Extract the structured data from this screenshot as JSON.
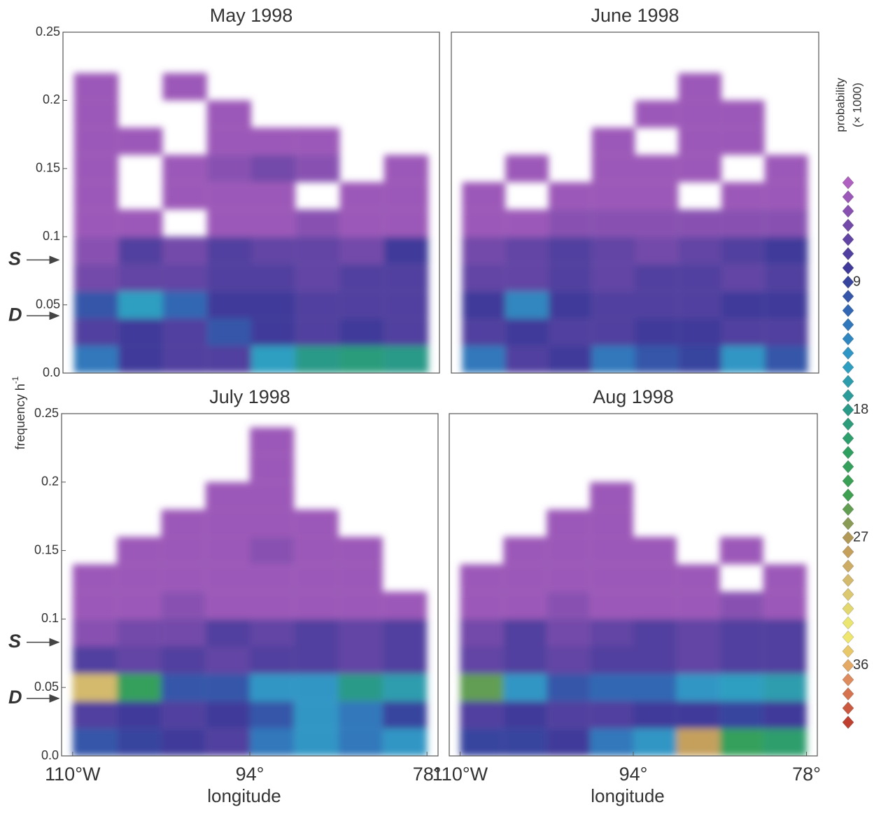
{
  "chart_data": [
    {
      "type": "heatmap",
      "title": "May 1998",
      "xlim": [
        -111,
        -77
      ],
      "ylim": [
        0,
        0.25
      ],
      "yticks": [
        {
          "value": 0,
          "label": "0.0"
        },
        0.05,
        0.1,
        0.15,
        0.2,
        0.25
      ],
      "xbins": [
        -110,
        -106,
        -102,
        -98,
        -94,
        -90,
        -86,
        -82,
        -78
      ],
      "ybins": [
        0,
        0.02,
        0.04,
        0.06,
        0.08,
        0.1,
        0.12,
        0.14,
        0.16,
        0.18,
        0.2,
        0.22,
        0.24
      ],
      "z": [
        [
          12,
          8,
          7,
          7,
          15,
          18,
          19,
          18
        ],
        [
          7,
          8,
          7,
          10,
          8,
          7,
          8,
          7
        ],
        [
          10,
          15,
          11,
          8,
          8,
          7,
          7,
          7
        ],
        [
          5,
          6,
          6,
          7,
          7,
          6,
          7,
          7
        ],
        [
          4,
          7,
          5,
          7,
          6,
          6,
          5,
          8
        ],
        [
          3,
          3,
          null,
          3,
          3,
          4,
          3,
          3
        ],
        [
          3,
          null,
          3,
          3,
          3,
          null,
          3,
          3
        ],
        [
          3,
          null,
          3,
          4,
          5,
          4,
          null,
          3
        ],
        [
          3,
          3,
          null,
          3,
          3,
          3,
          null,
          null
        ],
        [
          3,
          null,
          null,
          3,
          null,
          null,
          null,
          null
        ],
        [
          3,
          null,
          3,
          null,
          null,
          null,
          null,
          null
        ],
        [
          null,
          null,
          null,
          null,
          null,
          null,
          null,
          null
        ]
      ],
      "annotations": [
        {
          "text": "S",
          "y": 0.083
        },
        {
          "text": "D",
          "y": 0.042
        }
      ]
    },
    {
      "type": "heatmap",
      "title": "June 1998",
      "xlim": [
        -111,
        -77
      ],
      "ylim": [
        0,
        0.25
      ],
      "xbins": [
        -110,
        -106,
        -102,
        -98,
        -94,
        -90,
        -86,
        -82,
        -78
      ],
      "ybins": [
        0,
        0.02,
        0.04,
        0.06,
        0.08,
        0.1,
        0.12,
        0.14,
        0.16,
        0.18,
        0.2,
        0.22,
        0.24
      ],
      "z": [
        [
          12,
          7,
          8,
          12,
          10,
          9,
          14,
          10
        ],
        [
          7,
          8,
          7,
          7,
          8,
          8,
          7,
          7
        ],
        [
          8,
          13,
          8,
          7,
          7,
          7,
          8,
          8
        ],
        [
          6,
          6,
          7,
          6,
          7,
          7,
          6,
          7
        ],
        [
          5,
          6,
          7,
          6,
          5,
          6,
          7,
          8
        ],
        [
          3,
          3,
          4,
          4,
          4,
          4,
          4,
          4
        ],
        [
          3,
          null,
          3,
          3,
          3,
          null,
          3,
          3
        ],
        [
          null,
          3,
          null,
          3,
          3,
          3,
          null,
          3
        ],
        [
          null,
          null,
          null,
          3,
          null,
          3,
          3,
          null
        ],
        [
          null,
          null,
          null,
          null,
          3,
          3,
          3,
          null
        ],
        [
          null,
          null,
          null,
          null,
          null,
          3,
          null,
          null
        ],
        [
          null,
          null,
          null,
          null,
          null,
          null,
          null,
          null
        ]
      ]
    },
    {
      "type": "heatmap",
      "title": "July 1998",
      "xlim": [
        -111,
        -77
      ],
      "ylim": [
        0,
        0.25
      ],
      "yticks": [
        {
          "value": 0,
          "label": "0.0"
        },
        0.05,
        0.1,
        0.15,
        0.2,
        0.25
      ],
      "xticks": [
        {
          "value": -110,
          "label": "110°W"
        },
        {
          "value": -94,
          "label": "94°"
        },
        {
          "value": -78,
          "label": "78°"
        }
      ],
      "xlabel": "longitude",
      "xbins": [
        -110,
        -106,
        -102,
        -98,
        -94,
        -90,
        -86,
        -82,
        -78
      ],
      "ybins": [
        0,
        0.02,
        0.04,
        0.06,
        0.08,
        0.1,
        0.12,
        0.14,
        0.16,
        0.18,
        0.2,
        0.22,
        0.24
      ],
      "z": [
        [
          10,
          9,
          8,
          7,
          12,
          14,
          12,
          14
        ],
        [
          7,
          8,
          7,
          8,
          10,
          14,
          12,
          9
        ],
        [
          30,
          22,
          10,
          10,
          14,
          14,
          18,
          16
        ],
        [
          7,
          6,
          7,
          6,
          7,
          7,
          6,
          7
        ],
        [
          4,
          5,
          5,
          7,
          6,
          7,
          6,
          7
        ],
        [
          3,
          3,
          4,
          3,
          3,
          3,
          3,
          3
        ],
        [
          3,
          3,
          3,
          3,
          3,
          3,
          3,
          null
        ],
        [
          null,
          3,
          3,
          3,
          4,
          3,
          3,
          null
        ],
        [
          null,
          null,
          3,
          3,
          3,
          3,
          null,
          null
        ],
        [
          null,
          null,
          null,
          3,
          3,
          null,
          null,
          null
        ],
        [
          null,
          null,
          null,
          null,
          3,
          null,
          null,
          null
        ],
        [
          null,
          null,
          null,
          null,
          3,
          null,
          null,
          null
        ]
      ],
      "annotations": [
        {
          "text": "S",
          "y": 0.083
        },
        {
          "text": "D",
          "y": 0.042
        }
      ]
    },
    {
      "type": "heatmap",
      "title": "Aug 1998",
      "xlim": [
        -111,
        -77
      ],
      "ylim": [
        0,
        0.25
      ],
      "xticks": [
        {
          "value": -110,
          "label": "110°W"
        },
        {
          "value": -94,
          "label": "94°"
        },
        {
          "value": -78,
          "label": "78°"
        }
      ],
      "xlabel": "longitude",
      "xbins": [
        -110,
        -106,
        -102,
        -98,
        -94,
        -90,
        -86,
        -82,
        -78
      ],
      "ybins": [
        0,
        0.02,
        0.04,
        0.06,
        0.08,
        0.1,
        0.12,
        0.14,
        0.16,
        0.18,
        0.2,
        0.22,
        0.24
      ],
      "z": [
        [
          9,
          9,
          8,
          12,
          14,
          28,
          22,
          20
        ],
        [
          7,
          8,
          7,
          7,
          8,
          8,
          9,
          8
        ],
        [
          25,
          14,
          10,
          11,
          11,
          14,
          15,
          16
        ],
        [
          6,
          7,
          6,
          7,
          7,
          6,
          7,
          7
        ],
        [
          5,
          7,
          5,
          6,
          7,
          6,
          7,
          7
        ],
        [
          3,
          3,
          4,
          3,
          3,
          3,
          4,
          3
        ],
        [
          3,
          3,
          3,
          3,
          3,
          3,
          null,
          3
        ],
        [
          null,
          3,
          3,
          3,
          3,
          null,
          3,
          null
        ],
        [
          null,
          null,
          3,
          3,
          null,
          null,
          null,
          null
        ],
        [
          null,
          null,
          null,
          3,
          null,
          null,
          null,
          null
        ],
        [
          null,
          null,
          null,
          null,
          null,
          null,
          null,
          null
        ],
        [
          null,
          null,
          null,
          null,
          null,
          null,
          null,
          null
        ]
      ]
    }
  ],
  "ylabel": "frequency h",
  "ylabel_sup": "-1",
  "colorbar": {
    "label": "probability",
    "sublabel": "(× 1000)",
    "lim": [
      2,
      40
    ],
    "ticks": [
      9,
      18,
      27,
      36
    ],
    "colors": [
      "#b060c0",
      "#7048a8",
      "#3a3a98",
      "#3070b8",
      "#30a0c8",
      "#2a9a8a",
      "#30a060",
      "#40a050",
      "#c09858",
      "#d8c070",
      "#f0f070",
      "#e09060",
      "#c04030"
    ]
  }
}
